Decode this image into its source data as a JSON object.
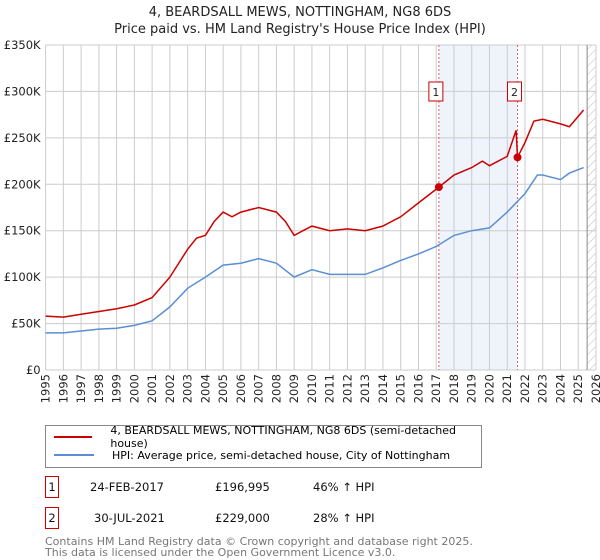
{
  "title": "4, BEARDSALL MEWS, NOTTINGHAM, NG8 6DS",
  "subtitle": "Price paid vs. HM Land Registry's House Price Index (HPI)",
  "chart_data": {
    "type": "line",
    "title": "4, BEARDSALL MEWS, NOTTINGHAM, NG8 6DS — Price paid vs. HM Land Registry's House Price Index (HPI)",
    "xlim": [
      1995,
      2026
    ],
    "ylim": [
      0,
      350000
    ],
    "x_ticks": [
      "1995",
      "1996",
      "1997",
      "1998",
      "1999",
      "2000",
      "2001",
      "2002",
      "2003",
      "2004",
      "2005",
      "2006",
      "2007",
      "2008",
      "2009",
      "2010",
      "2011",
      "2012",
      "2013",
      "2014",
      "2015",
      "2016",
      "2017",
      "2018",
      "2019",
      "2020",
      "2021",
      "2022",
      "2023",
      "2024",
      "2025",
      "2026"
    ],
    "y_ticks": [
      {
        "v": 0,
        "label": "£0"
      },
      {
        "v": 50000,
        "label": "£50K"
      },
      {
        "v": 100000,
        "label": "£100K"
      },
      {
        "v": 150000,
        "label": "£150K"
      },
      {
        "v": 200000,
        "label": "£200K"
      },
      {
        "v": 250000,
        "label": "£250K"
      },
      {
        "v": 300000,
        "label": "£300K"
      },
      {
        "v": 350000,
        "label": "£350K"
      }
    ],
    "series": [
      {
        "name": "4, BEARDSALL MEWS, NOTTINGHAM, NG8 6DS (semi-detached house)",
        "color": "#cc0000",
        "x": [
          1995,
          1996,
          1997,
          1998,
          1999,
          2000,
          2001,
          2002,
          2003,
          2003.5,
          2004,
          2004.5,
          2005,
          2005.5,
          2006,
          2007,
          2008,
          2008.5,
          2009,
          2009.5,
          2010,
          2011,
          2012,
          2013,
          2014,
          2015,
          2016,
          2017.15,
          2018,
          2019,
          2019.6,
          2020,
          2021,
          2021.5,
          2021.58,
          2022,
          2022.5,
          2023,
          2024,
          2024.5,
          2025.3
        ],
        "y": [
          58000,
          57000,
          60000,
          63000,
          66000,
          70000,
          78000,
          100000,
          130000,
          142000,
          145000,
          160000,
          170000,
          165000,
          170000,
          175000,
          170000,
          160000,
          145000,
          150000,
          155000,
          150000,
          152000,
          150000,
          155000,
          165000,
          180000,
          196995,
          210000,
          218000,
          225000,
          220000,
          230000,
          258000,
          229000,
          245000,
          268000,
          270000,
          265000,
          262000,
          280000
        ]
      },
      {
        "name": "HPI: Average price, semi-detached house, City of Nottingham",
        "color": "#5b8fd4",
        "x": [
          1995,
          1996,
          1997,
          1998,
          1999,
          2000,
          2001,
          2002,
          2003,
          2004,
          2005,
          2006,
          2007,
          2008,
          2009,
          2010,
          2011,
          2012,
          2013,
          2014,
          2015,
          2016,
          2017,
          2018,
          2019,
          2020,
          2021,
          2022,
          2022.7,
          2023,
          2024,
          2024.5,
          2025.3
        ],
        "y": [
          40000,
          40000,
          42000,
          44000,
          45000,
          48000,
          53000,
          68000,
          88000,
          100000,
          113000,
          115000,
          120000,
          115000,
          100000,
          108000,
          103000,
          103000,
          103000,
          110000,
          118000,
          125000,
          133000,
          145000,
          150000,
          153000,
          170000,
          190000,
          210000,
          210000,
          205000,
          212000,
          218000
        ]
      }
    ],
    "sales": [
      {
        "n": "1",
        "date": "24-FEB-2017",
        "x": 2017.15,
        "price": "£196,995",
        "value": 196995,
        "hpi": "46% ↑ HPI"
      },
      {
        "n": "2",
        "date": "30-JUL-2021",
        "x": 2021.58,
        "price": "£229,000",
        "value": 229000,
        "hpi": "28% ↑ HPI"
      }
    ],
    "shaded_range": [
      2017.15,
      2021.58
    ],
    "forecast_hatch_from": 2025.5,
    "legend": "below"
  },
  "footer": {
    "line1": "Contains HM Land Registry data © Crown copyright and database right 2025.",
    "line2": "This data is licensed under the Open Government Licence v3.0."
  }
}
